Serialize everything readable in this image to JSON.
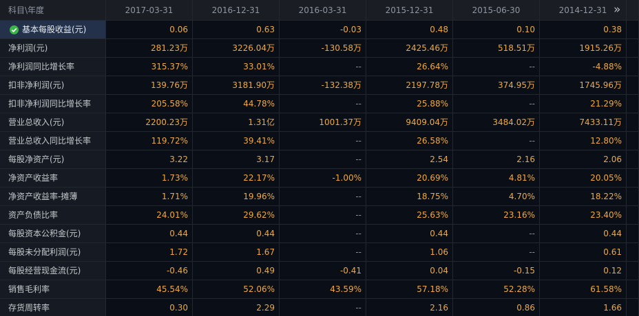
{
  "header": {
    "corner": "科目\\年度",
    "columns": [
      "2017-03-31",
      "2016-12-31",
      "2016-03-31",
      "2015-12-31",
      "2015-06-30",
      "2014-12-31"
    ],
    "more": "»"
  },
  "table": {
    "rows": [
      {
        "label": "基本每股收益(元)",
        "cells": [
          "0.06",
          "0.63",
          "-0.03",
          "0.48",
          "0.10",
          "0.38"
        ]
      },
      {
        "label": "净利润(元)",
        "cells": [
          "281.23万",
          "3226.04万",
          "-130.58万",
          "2425.46万",
          "518.51万",
          "1915.26万"
        ]
      },
      {
        "label": "净利润同比增长率",
        "cells": [
          "315.37%",
          "33.01%",
          "--",
          "26.64%",
          "--",
          "-4.88%"
        ]
      },
      {
        "label": "扣非净利润(元)",
        "cells": [
          "139.76万",
          "3181.90万",
          "-132.38万",
          "2197.78万",
          "374.95万",
          "1745.96万"
        ]
      },
      {
        "label": "扣非净利润同比增长率",
        "cells": [
          "205.58%",
          "44.78%",
          "--",
          "25.88%",
          "--",
          "21.29%"
        ]
      },
      {
        "label": "营业总收入(元)",
        "cells": [
          "2200.23万",
          "1.31亿",
          "1001.37万",
          "9409.04万",
          "3484.02万",
          "7433.11万"
        ]
      },
      {
        "label": "营业总收入同比增长率",
        "cells": [
          "119.72%",
          "39.41%",
          "--",
          "26.58%",
          "--",
          "12.80%"
        ]
      },
      {
        "label": "每股净资产(元)",
        "cells": [
          "3.22",
          "3.17",
          "--",
          "2.54",
          "2.16",
          "2.06"
        ]
      },
      {
        "label": "净资产收益率",
        "cells": [
          "1.73%",
          "22.17%",
          "-1.00%",
          "20.69%",
          "4.81%",
          "20.05%"
        ]
      },
      {
        "label": "净资产收益率-摊薄",
        "cells": [
          "1.71%",
          "19.96%",
          "--",
          "18.75%",
          "4.70%",
          "18.22%"
        ]
      },
      {
        "label": "资产负债比率",
        "cells": [
          "24.01%",
          "29.62%",
          "--",
          "25.63%",
          "23.16%",
          "23.40%"
        ]
      },
      {
        "label": "每股资本公积金(元)",
        "cells": [
          "0.44",
          "0.44",
          "--",
          "0.44",
          "--",
          "0.44"
        ]
      },
      {
        "label": "每股未分配利润(元)",
        "cells": [
          "1.72",
          "1.67",
          "--",
          "1.06",
          "--",
          "0.61"
        ]
      },
      {
        "label": "每股经营现金流(元)",
        "cells": [
          "-0.46",
          "0.49",
          "-0.41",
          "0.04",
          "-0.15",
          "0.12"
        ]
      },
      {
        "label": "销售毛利率",
        "cells": [
          "45.54%",
          "52.06%",
          "43.59%",
          "57.18%",
          "52.28%",
          "61.58%"
        ]
      },
      {
        "label": "存货周转率",
        "cells": [
          "0.30",
          "2.29",
          "--",
          "2.16",
          "0.86",
          "1.66"
        ]
      }
    ]
  }
}
